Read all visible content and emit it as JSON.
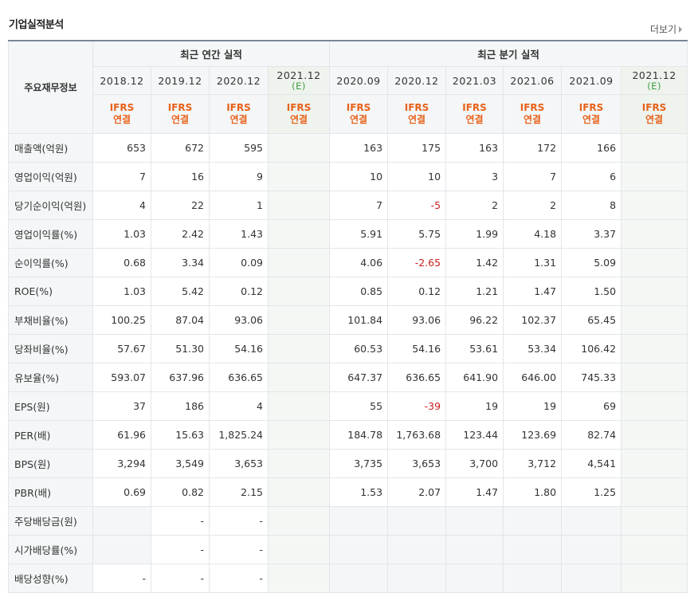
{
  "title": "기업실적분석",
  "more_label": "더보기",
  "header": {
    "corner": "주요재무정보",
    "annual_group": "최근 연간 실적",
    "quarter_group": "최근 분기 실적",
    "annual_periods": [
      "2018.12",
      "2019.12",
      "2020.12"
    ],
    "annual_estimate": {
      "period": "2021.12",
      "mark": "(E)"
    },
    "quarter_periods": [
      "2020.09",
      "2020.12",
      "2021.03",
      "2021.06",
      "2021.09"
    ],
    "quarter_estimate": {
      "period": "2021.12",
      "mark": "(E)"
    },
    "ifrs_line1": "IFRS",
    "ifrs_line2": "연결"
  },
  "rows": [
    {
      "label": "매출액(억원)",
      "annual": [
        "653",
        "672",
        "595",
        ""
      ],
      "quarter": [
        "163",
        "175",
        "163",
        "172",
        "166",
        ""
      ]
    },
    {
      "label": "영업이익(억원)",
      "annual": [
        "7",
        "16",
        "9",
        ""
      ],
      "quarter": [
        "10",
        "10",
        "3",
        "7",
        "6",
        ""
      ]
    },
    {
      "label": "당기순이익(억원)",
      "annual": [
        "4",
        "22",
        "1",
        ""
      ],
      "quarter": [
        "7",
        "-5",
        "2",
        "2",
        "8",
        ""
      ]
    },
    {
      "label": "영업이익률(%)",
      "annual": [
        "1.03",
        "2.42",
        "1.43",
        ""
      ],
      "quarter": [
        "5.91",
        "5.75",
        "1.99",
        "4.18",
        "3.37",
        ""
      ]
    },
    {
      "label": "순이익률(%)",
      "annual": [
        "0.68",
        "3.34",
        "0.09",
        ""
      ],
      "quarter": [
        "4.06",
        "-2.65",
        "1.42",
        "1.31",
        "5.09",
        ""
      ]
    },
    {
      "label": "ROE(%)",
      "annual": [
        "1.03",
        "5.42",
        "0.12",
        ""
      ],
      "quarter": [
        "0.85",
        "0.12",
        "1.21",
        "1.47",
        "1.50",
        ""
      ]
    },
    {
      "label": "부채비율(%)",
      "annual": [
        "100.25",
        "87.04",
        "93.06",
        ""
      ],
      "quarter": [
        "101.84",
        "93.06",
        "96.22",
        "102.37",
        "65.45",
        ""
      ]
    },
    {
      "label": "당좌비율(%)",
      "annual": [
        "57.67",
        "51.30",
        "54.16",
        ""
      ],
      "quarter": [
        "60.53",
        "54.16",
        "53.61",
        "53.34",
        "106.42",
        ""
      ]
    },
    {
      "label": "유보율(%)",
      "annual": [
        "593.07",
        "637.96",
        "636.65",
        ""
      ],
      "quarter": [
        "647.37",
        "636.65",
        "641.90",
        "646.00",
        "745.33",
        ""
      ]
    },
    {
      "label": "EPS(원)",
      "annual": [
        "37",
        "186",
        "4",
        ""
      ],
      "quarter": [
        "55",
        "-39",
        "19",
        "19",
        "69",
        ""
      ]
    },
    {
      "label": "PER(배)",
      "annual": [
        "61.96",
        "15.63",
        "1,825.24",
        ""
      ],
      "quarter": [
        "184.78",
        "1,763.68",
        "123.44",
        "123.69",
        "82.74",
        ""
      ]
    },
    {
      "label": "BPS(원)",
      "annual": [
        "3,294",
        "3,549",
        "3,653",
        ""
      ],
      "quarter": [
        "3,735",
        "3,653",
        "3,700",
        "3,712",
        "4,541",
        ""
      ]
    },
    {
      "label": "PBR(배)",
      "annual": [
        "0.69",
        "0.82",
        "2.15",
        ""
      ],
      "quarter": [
        "1.53",
        "2.07",
        "1.47",
        "1.80",
        "1.25",
        ""
      ]
    },
    {
      "label": "주당배당금(원)",
      "annual": [
        "",
        "-",
        "-",
        ""
      ],
      "quarter": [
        "",
        "",
        "",
        "",
        "",
        ""
      ]
    },
    {
      "label": "시가배당률(%)",
      "annual": [
        "",
        "-",
        "-",
        ""
      ],
      "quarter": [
        "",
        "",
        "",
        "",
        "",
        ""
      ]
    },
    {
      "label": "배당성향(%)",
      "annual": [
        "-",
        "-",
        "-",
        ""
      ],
      "quarter": [
        "",
        "",
        "",
        "",
        "",
        ""
      ]
    }
  ],
  "colors": {
    "accent": "#e8621a",
    "negative": "#cc1f1f",
    "estimate": "#3c9e3c"
  }
}
